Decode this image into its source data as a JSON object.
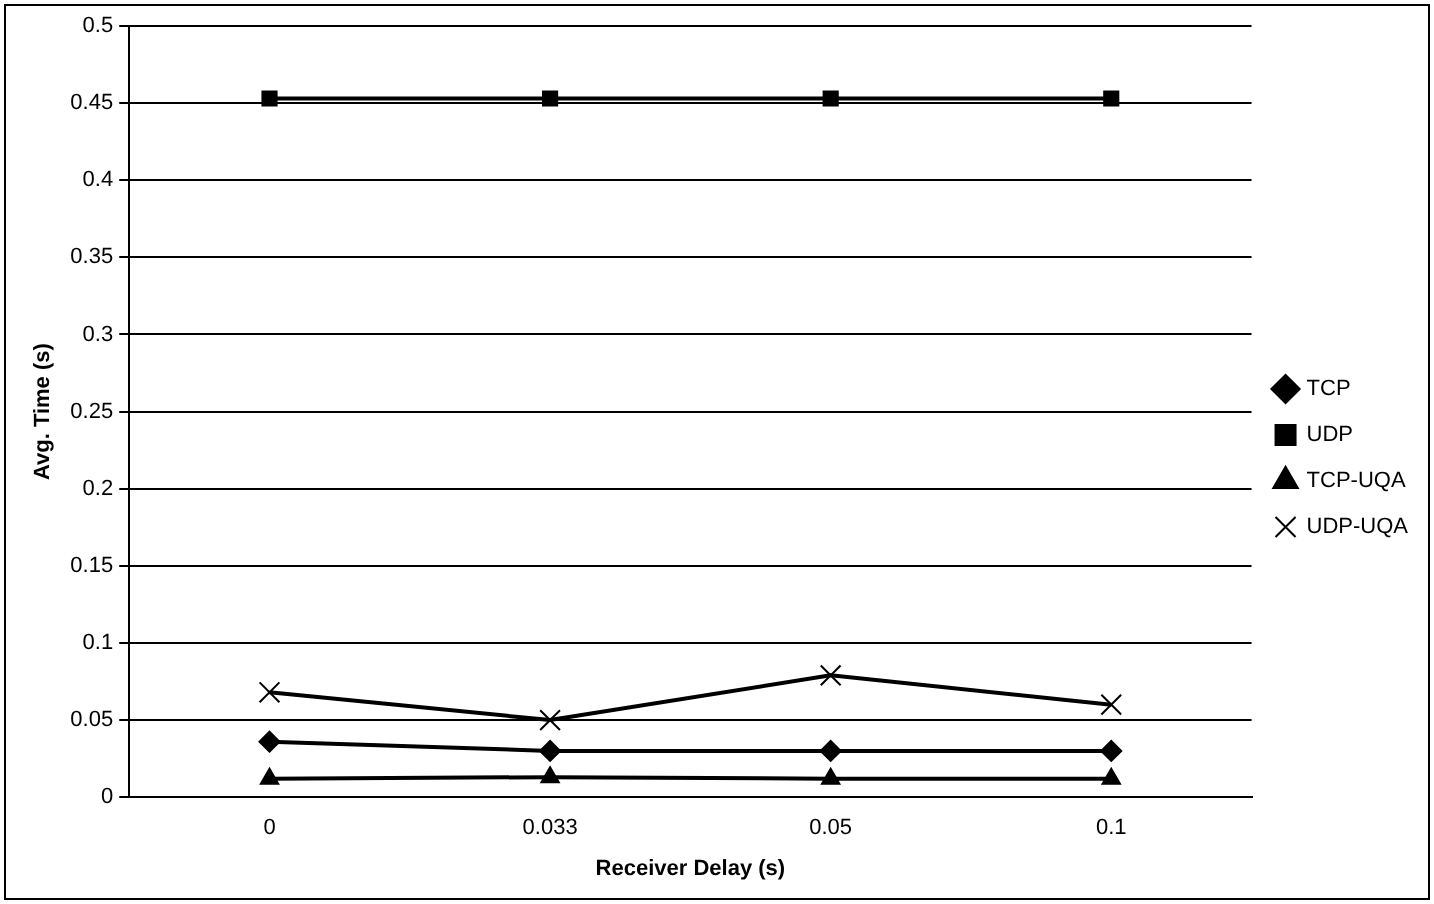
{
  "chart_data": {
    "type": "line",
    "xlabel": "Receiver Delay (s)",
    "ylabel": "Avg. Time (s)",
    "categories": [
      "0",
      "0.033",
      "0.05",
      "0.1"
    ],
    "series": [
      {
        "name": "TCP",
        "color": "#000000",
        "marker": "diamond",
        "values": [
          0.036,
          0.03,
          0.03,
          0.03
        ]
      },
      {
        "name": "UDP",
        "color": "#000000",
        "marker": "square",
        "values": [
          0.453,
          0.453,
          0.453,
          0.453
        ]
      },
      {
        "name": "TCP-UQA",
        "color": "#000000",
        "marker": "triangle",
        "values": [
          0.012,
          0.013,
          0.012,
          0.012
        ]
      },
      {
        "name": "UDP-UQA",
        "color": "#000000",
        "marker": "cross",
        "values": [
          0.068,
          0.05,
          0.079,
          0.06
        ]
      }
    ],
    "ylim": [
      0,
      0.5
    ],
    "yticks": [
      0,
      0.05,
      0.1,
      0.15,
      0.2,
      0.25,
      0.3,
      0.35,
      0.4,
      0.45,
      0.5
    ],
    "grid": "y",
    "legend": "right",
    "line_style": "solid"
  }
}
